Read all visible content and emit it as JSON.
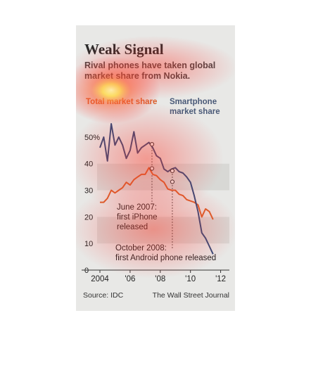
{
  "header": {
    "title": "Weak Signal",
    "subtitle": "Rival phones have taken global market share from Nokia."
  },
  "legend": {
    "total": "Total market share",
    "smartphone": "Smartphone market share"
  },
  "footer": {
    "source": "Source: IDC",
    "credit": "The Wall Street Journal"
  },
  "colors": {
    "total": "#d9602b",
    "smartphone": "#2f4a7a",
    "background": "#e8e8e6"
  },
  "chart_data": {
    "type": "line",
    "title": "Weak Signal",
    "subtitle": "Rival phones have taken global market share from Nokia.",
    "xlim": [
      2004,
      2012.3
    ],
    "ylim": [
      0,
      55
    ],
    "y_ticks": [
      0,
      10,
      20,
      30,
      40,
      50
    ],
    "y_tick_labels": [
      "0",
      "10",
      "20",
      "30",
      "40",
      "50%"
    ],
    "x_ticks": [
      2004,
      2006,
      2008,
      2010,
      2012
    ],
    "x_tick_labels": [
      "2004",
      "'06",
      "'08",
      "'10",
      "'12"
    ],
    "grid": true,
    "series": [
      {
        "name": "Total market share",
        "color": "#d9602b",
        "points": [
          [
            2004.0,
            25.5
          ],
          [
            2004.25,
            25.5
          ],
          [
            2004.5,
            27
          ],
          [
            2004.75,
            30
          ],
          [
            2005.0,
            29
          ],
          [
            2005.25,
            30
          ],
          [
            2005.5,
            31
          ],
          [
            2005.75,
            33
          ],
          [
            2006.0,
            32
          ],
          [
            2006.25,
            34
          ],
          [
            2006.5,
            35
          ],
          [
            2006.75,
            36
          ],
          [
            2007.0,
            36
          ],
          [
            2007.25,
            38.5
          ],
          [
            2007.5,
            36
          ],
          [
            2007.75,
            35.5
          ],
          [
            2008.0,
            34
          ],
          [
            2008.25,
            33
          ],
          [
            2008.5,
            30.5
          ],
          [
            2008.75,
            30
          ],
          [
            2009.0,
            30
          ],
          [
            2009.25,
            28.5
          ],
          [
            2009.5,
            28
          ],
          [
            2009.75,
            26.5
          ],
          [
            2010.0,
            26
          ],
          [
            2010.25,
            25.5
          ],
          [
            2010.5,
            24.5
          ],
          [
            2010.75,
            20
          ],
          [
            2011.0,
            23
          ],
          [
            2011.25,
            22
          ],
          [
            2011.5,
            19
          ]
        ]
      },
      {
        "name": "Smartphone market share",
        "color": "#2f4a7a",
        "points": [
          [
            2004.0,
            46
          ],
          [
            2004.25,
            50
          ],
          [
            2004.5,
            41
          ],
          [
            2004.75,
            55
          ],
          [
            2005.0,
            47
          ],
          [
            2005.25,
            50
          ],
          [
            2005.5,
            47
          ],
          [
            2005.75,
            42
          ],
          [
            2006.0,
            45
          ],
          [
            2006.25,
            52
          ],
          [
            2006.5,
            44
          ],
          [
            2006.75,
            46
          ],
          [
            2007.0,
            47
          ],
          [
            2007.25,
            48
          ],
          [
            2007.5,
            46
          ],
          [
            2007.75,
            43
          ],
          [
            2008.0,
            42
          ],
          [
            2008.25,
            38
          ],
          [
            2008.5,
            37
          ],
          [
            2008.75,
            38
          ],
          [
            2009.0,
            38.5
          ],
          [
            2009.25,
            37
          ],
          [
            2009.5,
            36.5
          ],
          [
            2009.75,
            35
          ],
          [
            2010.0,
            33
          ],
          [
            2010.25,
            28
          ],
          [
            2010.5,
            22
          ],
          [
            2010.75,
            14
          ],
          [
            2011.0,
            12
          ],
          [
            2011.25,
            9
          ],
          [
            2011.5,
            6
          ]
        ]
      }
    ],
    "annotations": [
      {
        "id": "iphone",
        "lines": [
          "June 2007:",
          "first iPhone",
          "released"
        ],
        "x": 2007.45,
        "markers": [
          38.2,
          47.3
        ]
      },
      {
        "id": "android",
        "lines": [
          "October 2008:",
          "first Android phone released"
        ],
        "x": 2008.8,
        "markers": [
          33.2,
          37.3
        ]
      }
    ]
  }
}
